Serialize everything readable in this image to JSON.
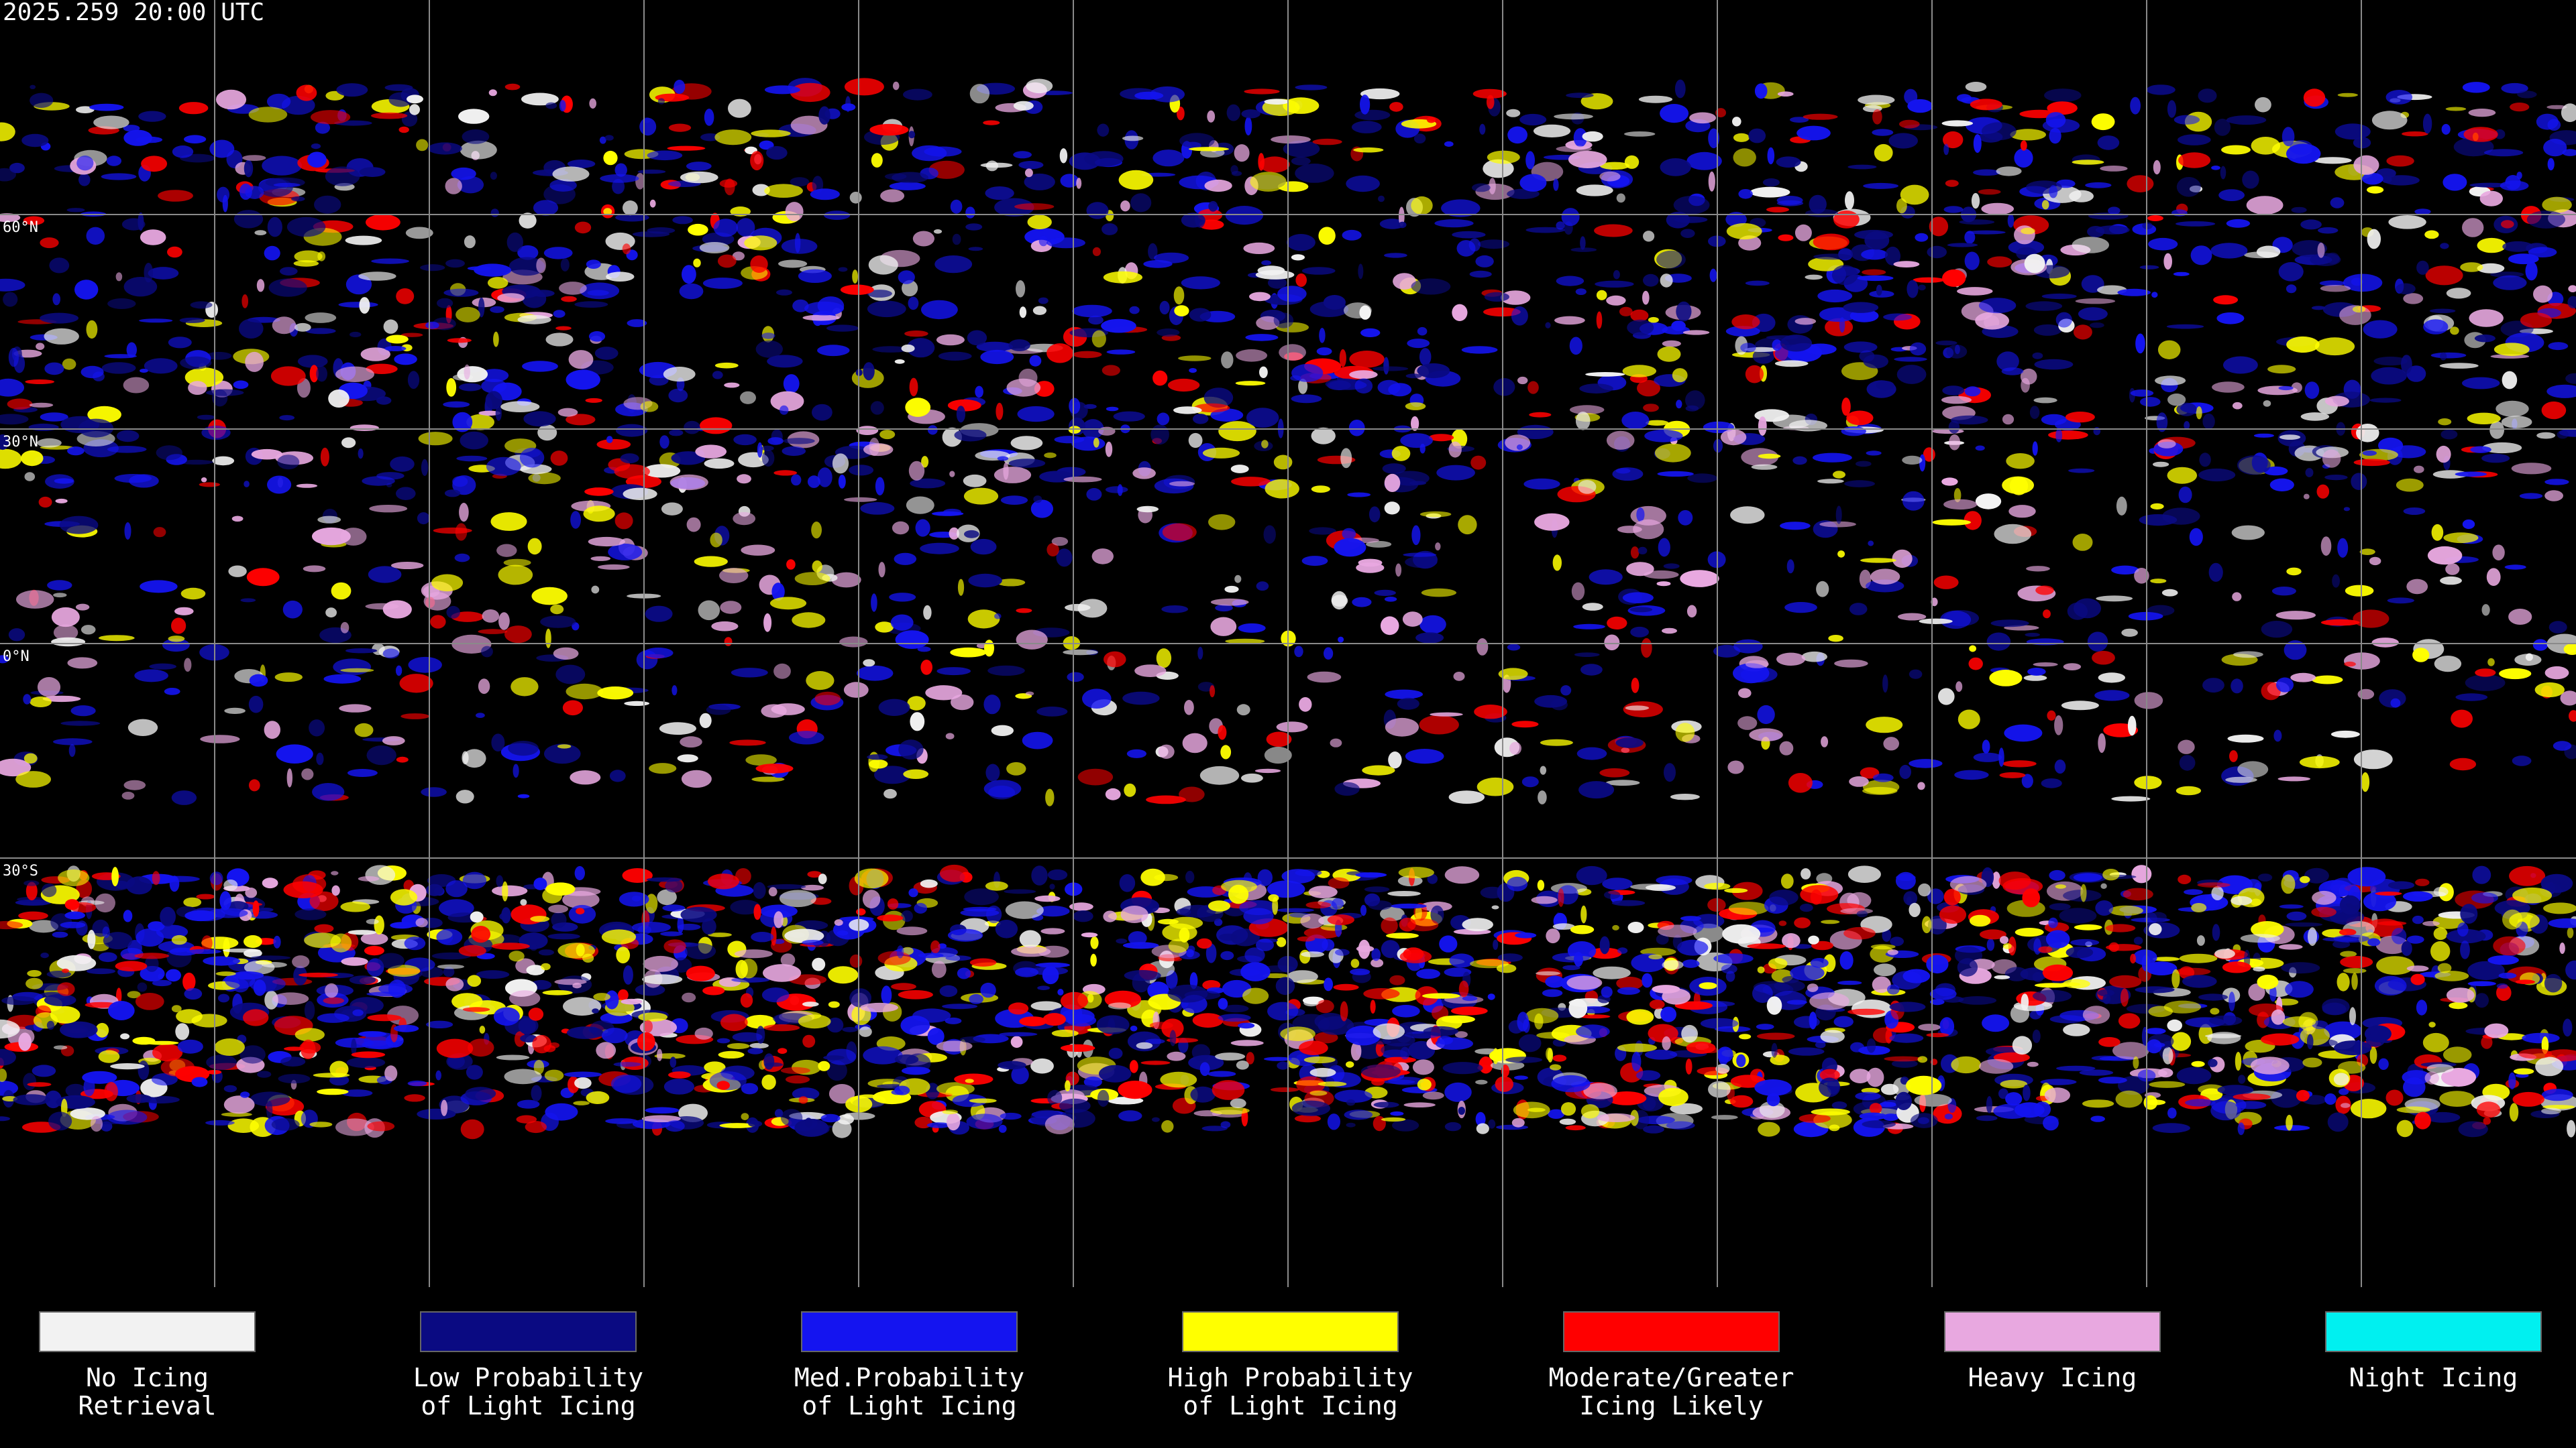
{
  "header": {
    "timestamp": "2025.259 20:00 UTC"
  },
  "latitudes": [
    {
      "value": 60,
      "label": "60°N"
    },
    {
      "value": 30,
      "label": "30°N"
    },
    {
      "value": 0,
      "label": "0°N"
    },
    {
      "value": -30,
      "label": "30°S"
    }
  ],
  "legend": [
    {
      "color": "#f2f2f2",
      "lines": [
        "No Icing",
        "Retrieval"
      ]
    },
    {
      "color": "#0a0a82",
      "lines": [
        "Low Probability",
        "of Light Icing"
      ]
    },
    {
      "color": "#1414f0",
      "lines": [
        "Med.Probability",
        "of Light Icing"
      ]
    },
    {
      "color": "#ffff00",
      "lines": [
        "High Probability",
        "of Light Icing"
      ]
    },
    {
      "color": "#ff0000",
      "lines": [
        "Moderate/Greater",
        "Icing Likely"
      ]
    },
    {
      "color": "#e8a8e0",
      "lines": [
        "Heavy Icing"
      ]
    },
    {
      "color": "#00f0f0",
      "lines": [
        "Night Icing"
      ]
    }
  ]
}
